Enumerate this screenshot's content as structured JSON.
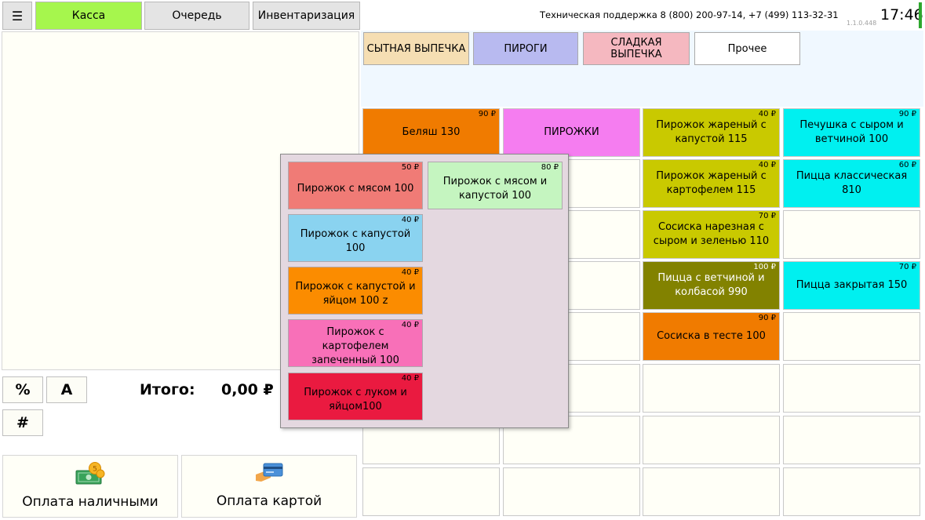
{
  "topbar": {
    "menu_icon": "☰",
    "tabs": [
      "Касса",
      "Очередь",
      "Инвентаризация"
    ],
    "support": "Техническая поддержка 8 (800) 200-97-14, +7 (499) 113-32-31",
    "version": "1.1.0.448",
    "time": "17:46"
  },
  "left": {
    "btn_percent": "%",
    "btn_a": "A",
    "btn_hash": "#",
    "total_label": "Итого:",
    "total_value": "0,00 ₽",
    "pay_cash": "Оплата наличными",
    "pay_card": "Оплата картой"
  },
  "categories": [
    "СЫТНАЯ ВЫПЕЧКА",
    "ПИРОГИ",
    "СЛАДКАЯ ВЫПЕЧКА",
    "Прочее"
  ],
  "grid": [
    {
      "name": "Беляш 130",
      "price": "90 ₽",
      "color": "#f07b00"
    },
    {
      "name": "ПИРОЖКИ",
      "price": "",
      "color": "#f57df0"
    },
    {
      "name": "Пирожок жареный с капустой 115",
      "price": "40 ₽",
      "color": "#c9c900"
    },
    {
      "name": "Печушка с сыром и ветчиной 100",
      "price": "90 ₽",
      "color": "#00f0f0"
    },
    {
      "name": "",
      "price": "",
      "color": "#fffff7"
    },
    {
      "name": "",
      "price": "",
      "color": "#fffff7"
    },
    {
      "name": "Пирожок жареный с картофелем 115",
      "price": "40 ₽",
      "color": "#c9c900"
    },
    {
      "name": "Пицца классическая 810",
      "price": "60 ₽",
      "color": "#00f0f0"
    },
    {
      "name": "",
      "price": "",
      "color": "#fffff7"
    },
    {
      "name": "",
      "price": "",
      "color": "#fffff7"
    },
    {
      "name": "Сосиска нарезная с сыром и зеленью 110",
      "price": "70 ₽",
      "color": "#c9c900"
    },
    {
      "name": "",
      "price": "",
      "color": "#fffff7"
    },
    {
      "name": "",
      "price": "",
      "color": "#fffff7"
    },
    {
      "name": "",
      "price": "",
      "color": "#fffff7"
    },
    {
      "name": "Пицца с ветчиной и колбасой 990",
      "price": "100 ₽",
      "color": "#828200"
    },
    {
      "name": "Пицца закрытая 150",
      "price": "70 ₽",
      "color": "#00f0f0"
    },
    {
      "name": "",
      "price": "",
      "color": "#fffff7"
    },
    {
      "name": "",
      "price": "",
      "color": "#fffff7"
    },
    {
      "name": "Сосиска в тесте 100",
      "price": "90 ₽",
      "color": "#f07b00"
    },
    {
      "name": "",
      "price": "",
      "color": "#fffff7"
    },
    {
      "name": "",
      "price": "",
      "color": "#fffff7"
    },
    {
      "name": "",
      "price": "",
      "color": "#fffff7"
    },
    {
      "name": "",
      "price": "",
      "color": "#fffff7"
    },
    {
      "name": "",
      "price": "",
      "color": "#fffff7"
    },
    {
      "name": "",
      "price": "",
      "color": "#fffff7"
    },
    {
      "name": "",
      "price": "",
      "color": "#fffff7"
    },
    {
      "name": "",
      "price": "",
      "color": "#fffff7"
    },
    {
      "name": "",
      "price": "",
      "color": "#fffff7"
    },
    {
      "name": "",
      "price": "",
      "color": "#fffff7"
    },
    {
      "name": "",
      "price": "",
      "color": "#fffff7"
    },
    {
      "name": "",
      "price": "",
      "color": "#fffff7"
    },
    {
      "name": "",
      "price": "",
      "color": "#fffff7"
    }
  ],
  "popup": [
    {
      "name": "Пирожок с  мясом 100",
      "price": "50 ₽",
      "color": "#f07b76"
    },
    {
      "name": "Пирожок с мясом и капустой 100",
      "price": "80 ₽",
      "color": "#c5f5c0"
    },
    {
      "name": "Пирожок с капустой 100",
      "price": "40 ₽",
      "color": "#8ad3f0"
    },
    {
      "name": "Пирожок с капустой и яйцом 100 z",
      "price": "40 ₽",
      "color": "#fb8c00"
    },
    {
      "name": "Пирожок с картофелем запеченный 100",
      "price": "40 ₽",
      "color": "#f870b8"
    },
    {
      "name": "Пирожок с луком и яйцом100",
      "price": "40 ₽",
      "color": "#ea1a40"
    }
  ]
}
